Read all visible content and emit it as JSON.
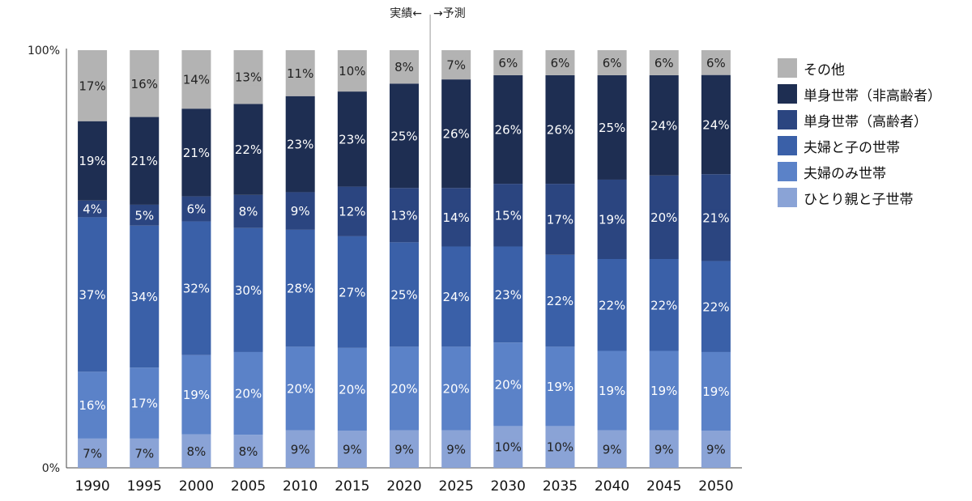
{
  "chart_data": {
    "type": "bar",
    "stacked": true,
    "percent_stacked": true,
    "categories": [
      "1990",
      "1995",
      "2000",
      "2005",
      "2010",
      "2015",
      "2020",
      "2025",
      "2030",
      "2035",
      "2040",
      "2045",
      "2050"
    ],
    "series": [
      {
        "name": "ひとり親と子世帯",
        "color": "#8aa3d6",
        "values": [
          7,
          7,
          8,
          8,
          9,
          9,
          9,
          9,
          10,
          10,
          9,
          9,
          9
        ]
      },
      {
        "name": "夫婦のみ世帯",
        "color": "#5b82c8",
        "values": [
          16,
          17,
          19,
          20,
          20,
          20,
          20,
          20,
          20,
          19,
          19,
          19,
          19
        ]
      },
      {
        "name": "夫婦と子の世帯",
        "color": "#3a60a8",
        "values": [
          37,
          34,
          32,
          30,
          28,
          27,
          25,
          24,
          23,
          22,
          22,
          22,
          22
        ]
      },
      {
        "name": "単身世帯（高齢者）",
        "color": "#2b4580",
        "values": [
          4,
          5,
          6,
          8,
          9,
          12,
          13,
          14,
          15,
          17,
          19,
          20,
          21
        ]
      },
      {
        "name": "単身世帯（非高齢者）",
        "color": "#1e2e52",
        "values": [
          19,
          21,
          21,
          22,
          23,
          23,
          25,
          26,
          26,
          26,
          25,
          24,
          24
        ]
      },
      {
        "name": "その他",
        "color": "#b3b3b3",
        "values": [
          17,
          16,
          14,
          13,
          11,
          10,
          8,
          7,
          6,
          6,
          6,
          6,
          6
        ]
      }
    ],
    "labels": [
      [
        "7%",
        "7%",
        "8%",
        "8%",
        "9%",
        "9%",
        "9%",
        "9%",
        "10%",
        "10%",
        "9%",
        "9%",
        "9%"
      ],
      [
        "16%",
        "17%",
        "19%",
        "20%",
        "20%",
        "20%",
        "20%",
        "20%",
        "20%",
        "19%",
        "19%",
        "19%",
        "19%"
      ],
      [
        "37%",
        "34%",
        "32%",
        "30%",
        "28%",
        "27%",
        "25%",
        "24%",
        "23%",
        "22%",
        "22%",
        "22%",
        "22%"
      ],
      [
        "4%",
        "5%",
        "6%",
        "8%",
        "9%",
        "12%",
        "13%",
        "14%",
        "15%",
        "17%",
        "19%",
        "20%",
        "21%"
      ],
      [
        "19%",
        "21%",
        "21%",
        "22%",
        "23%",
        "23%",
        "25%",
        "26%",
        "26%",
        "26%",
        "25%",
        "24%",
        "24%"
      ],
      [
        "17%",
        "16%",
        "14%",
        "13%",
        "11%",
        "10%",
        "8%",
        "7%",
        "6%",
        "6%",
        "6%",
        "6%",
        "6%"
      ]
    ],
    "y_tick_labels": [
      "0%",
      "100%"
    ],
    "ylim": [
      0,
      100
    ],
    "legend_position": "right",
    "legend_order": [
      "その他",
      "単身世帯（非高齢者）",
      "単身世帯（高齢者）",
      "夫婦と子の世帯",
      "夫婦のみ世帯",
      "ひとり親と子世帯"
    ],
    "divider": {
      "after_category": "2020",
      "label": "実績←　→予測"
    }
  }
}
